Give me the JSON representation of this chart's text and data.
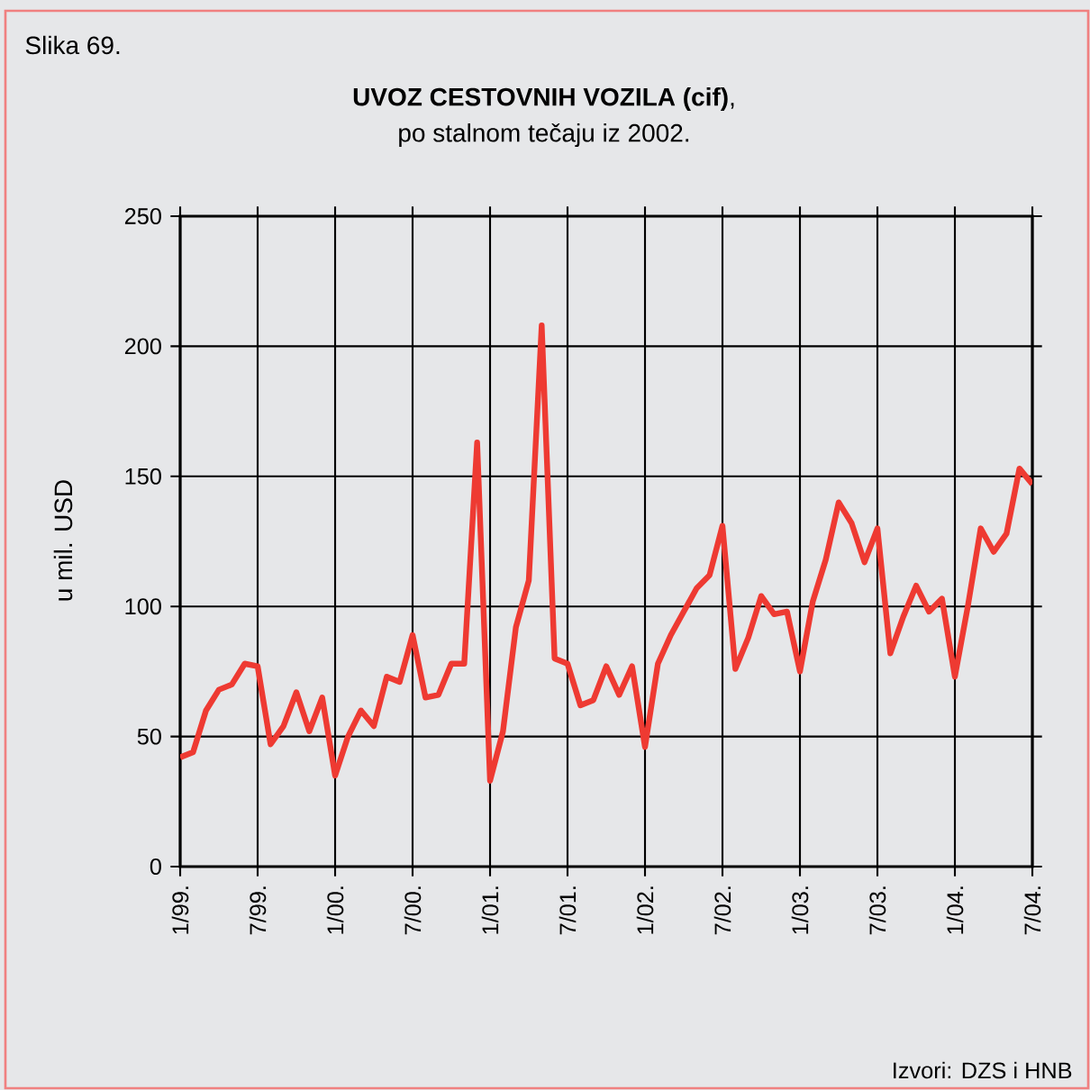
{
  "chart_data": {
    "type": "line",
    "title": "**UVOZ CESTOVNIH VOZILA (cif)**,",
    "subtitle": "po stalnom tečaju iz 2002.",
    "ylabel": "u mil. USD",
    "annotations": [
      "Slika 69.",
      "Izvori: DZS i HNB"
    ],
    "categories": [
      "1/99.",
      null,
      null,
      null,
      null,
      null,
      "7/99.",
      null,
      null,
      null,
      null,
      null,
      "1/00.",
      null,
      null,
      null,
      null,
      null,
      "7/00.",
      null,
      null,
      null,
      null,
      null,
      "1/01.",
      null,
      null,
      null,
      null,
      null,
      "7/01.",
      null,
      null,
      null,
      null,
      null,
      "1/02.",
      null,
      null,
      null,
      null,
      null,
      "7/02.",
      null,
      null,
      null,
      null,
      null,
      "1/03.",
      null,
      null,
      null,
      null,
      null,
      "7/03.",
      null,
      null,
      null,
      null,
      null,
      "1/04.",
      null,
      null,
      null,
      null,
      null,
      "7/04."
    ],
    "values": [
      42,
      44,
      60,
      68,
      70,
      78,
      77,
      47,
      54,
      67,
      52,
      65,
      35,
      50,
      60,
      54,
      73,
      71,
      89,
      65,
      66,
      78,
      78,
      163,
      33,
      52,
      92,
      110,
      208,
      80,
      78,
      62,
      64,
      77,
      66,
      77,
      46,
      78,
      89,
      98,
      107,
      112,
      131,
      76,
      88,
      104,
      97,
      98,
      75,
      102,
      118,
      140,
      132,
      117,
      130,
      82,
      96,
      108,
      98,
      103,
      73,
      100,
      130,
      121,
      128,
      153,
      147
    ],
    "color": "#ee3a32",
    "ylim": [
      0,
      250
    ],
    "yticks": [
      0,
      50,
      100,
      150,
      200,
      250
    ],
    "grid": true
  }
}
